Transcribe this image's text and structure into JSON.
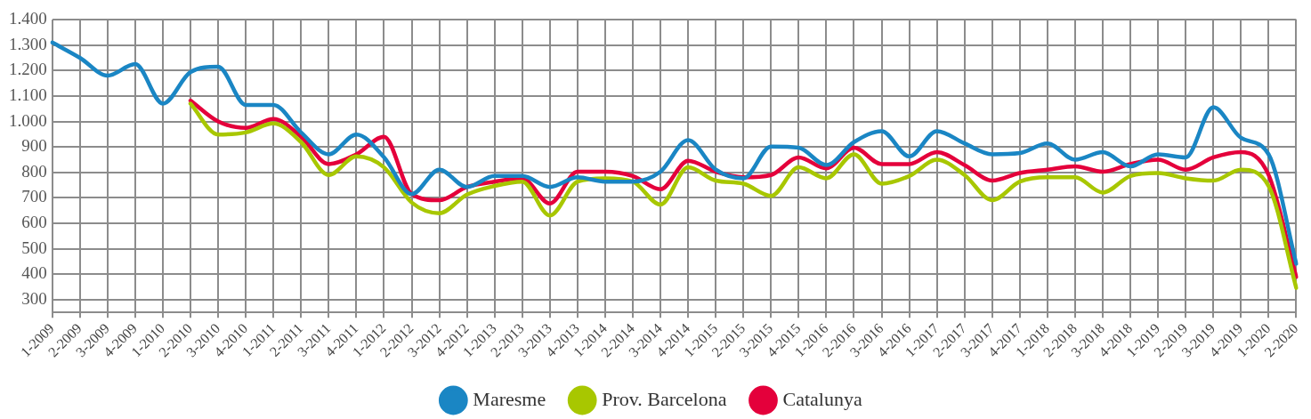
{
  "chart_data": {
    "type": "line",
    "categories": [
      "1-2009",
      "2-2009",
      "3-2009",
      "4-2009",
      "1-2010",
      "2-2010",
      "3-2010",
      "4-2010",
      "1-2011",
      "2-2011",
      "3-2011",
      "4-2011",
      "1-2012",
      "2-2012",
      "3-2012",
      "4-2012",
      "1-2013",
      "2-2013",
      "3-2013",
      "4-2013",
      "1-2014",
      "2-2014",
      "3-2014",
      "4-2014",
      "1-2015",
      "2-2015",
      "3-2015",
      "4-2015",
      "1-2016",
      "2-2016",
      "3-2016",
      "4-2016",
      "1-2017",
      "2-2017",
      "3-2017",
      "4-2017",
      "1-2018",
      "2-2018",
      "3-2018",
      "4-2018",
      "1-2019",
      "2-2019",
      "3-2019",
      "4-2019",
      "1-2020",
      "2-2020"
    ],
    "series": [
      {
        "name": "Maresme",
        "color": "#1a86c4",
        "values": [
          1310,
          1250,
          1180,
          1225,
          1070,
          1194,
          1215,
          1065,
          1065,
          957,
          871,
          949,
          860,
          715,
          811,
          743,
          786,
          786,
          743,
          781,
          764,
          764,
          803,
          927,
          811,
          777,
          902,
          897,
          829,
          919,
          962,
          863,
          962,
          914,
          871,
          876,
          914,
          850,
          880,
          824,
          871,
          859,
          1056,
          936,
          871,
          442
        ]
      },
      {
        "name": "Prov. Barcelona",
        "color": "#a8c700",
        "values": [
          null,
          null,
          null,
          null,
          null,
          1070,
          949,
          957,
          992,
          919,
          790,
          863,
          820,
          682,
          640,
          713,
          747,
          764,
          631,
          764,
          777,
          764,
          674,
          820,
          768,
          756,
          708,
          820,
          777,
          871,
          756,
          786,
          850,
          790,
          691,
          764,
          781,
          781,
          721,
          786,
          798,
          777,
          768,
          811,
          747,
          347
        ]
      },
      {
        "name": "Catalunya",
        "color": "#e4003b",
        "values": [
          null,
          null,
          null,
          null,
          null,
          1082,
          1000,
          975,
          1010,
          940,
          833,
          871,
          940,
          715,
          691,
          743,
          764,
          777,
          678,
          803,
          803,
          786,
          734,
          846,
          803,
          781,
          790,
          859,
          816,
          897,
          833,
          833,
          880,
          829,
          768,
          798,
          811,
          824,
          803,
          833,
          850,
          811,
          859,
          880,
          790,
          390
        ]
      }
    ],
    "ylim": [
      250,
      1400
    ],
    "yticks": [
      300,
      400,
      500,
      600,
      700,
      800,
      900,
      {
        "value": 1000,
        "label": "1.000"
      },
      {
        "value": 1100,
        "label": "1.100"
      },
      {
        "value": 1200,
        "label": "1.200"
      },
      {
        "value": 1300,
        "label": "1.300"
      },
      {
        "value": 1400,
        "label": "1.400"
      }
    ],
    "grid": true,
    "legend": "bottom",
    "marker": "none",
    "line_style": "solid"
  }
}
